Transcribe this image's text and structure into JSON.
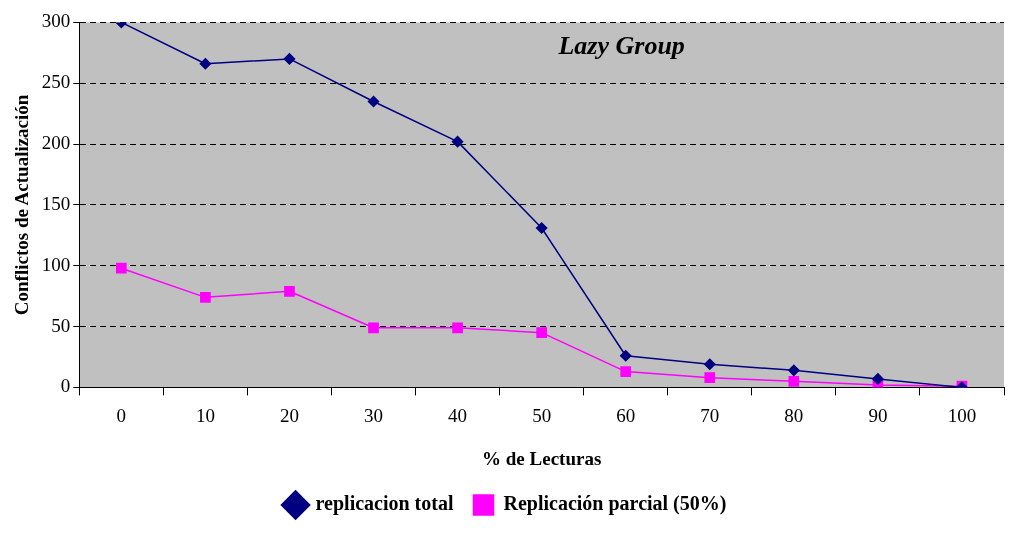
{
  "chart_data": {
    "type": "line",
    "title": "Lazy Group",
    "xlabel": "% de Lecturas",
    "ylabel": "Conflictos de Actualización",
    "categories": [
      "0",
      "10",
      "20",
      "30",
      "40",
      "50",
      "60",
      "70",
      "80",
      "90",
      "100"
    ],
    "series": [
      {
        "name": "replicacion total",
        "color": "#000080",
        "marker": "diamond",
        "values": [
          300,
          266,
          270,
          235,
          202,
          131,
          26,
          19,
          14,
          7,
          0
        ]
      },
      {
        "name": "Replicación parcial (50%)",
        "color": "#ff00ff",
        "marker": "square",
        "values": [
          98,
          74,
          79,
          49,
          49,
          45,
          13,
          8,
          5,
          2,
          1
        ]
      }
    ],
    "ylim": [
      0,
      300
    ],
    "yticks": [
      0,
      50,
      100,
      150,
      200,
      250,
      300
    ],
    "grid": "y",
    "legend": "bottom"
  }
}
